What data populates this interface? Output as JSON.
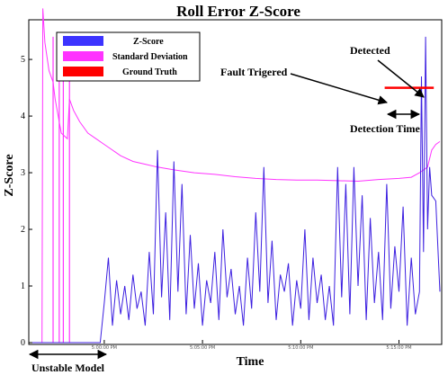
{
  "chart_data": {
    "type": "line",
    "title": "Roll Error Z-Score",
    "xlabel": "Time",
    "ylabel": "Z-Score",
    "ylim": [
      0,
      5.7
    ],
    "y_ticks": [
      "0",
      "1",
      "2",
      "3",
      "4",
      "5"
    ],
    "x_tick_labels": [
      "5:00:00 PM",
      "5:05:00 PM",
      "5:10:00 PM",
      "5:15:00 PM"
    ],
    "grid": false,
    "legend_position": "top-left",
    "series": [
      {
        "name": "Z-Score",
        "color": "#3c1fe0",
        "note_shape": "dense noisy spikes",
        "values": [
          [
            0.0,
            0.0
          ],
          [
            0.17,
            0.0
          ],
          [
            0.18,
            0.7
          ],
          [
            0.19,
            1.5
          ],
          [
            0.2,
            0.3
          ],
          [
            0.21,
            1.1
          ],
          [
            0.22,
            0.5
          ],
          [
            0.23,
            1.0
          ],
          [
            0.24,
            0.4
          ],
          [
            0.25,
            1.2
          ],
          [
            0.26,
            0.6
          ],
          [
            0.27,
            0.9
          ],
          [
            0.28,
            0.3
          ],
          [
            0.29,
            1.6
          ],
          [
            0.3,
            0.5
          ],
          [
            0.31,
            3.4
          ],
          [
            0.32,
            0.8
          ],
          [
            0.33,
            2.3
          ],
          [
            0.34,
            0.4
          ],
          [
            0.35,
            3.2
          ],
          [
            0.36,
            0.9
          ],
          [
            0.37,
            2.8
          ],
          [
            0.38,
            0.5
          ],
          [
            0.39,
            1.9
          ],
          [
            0.4,
            0.6
          ],
          [
            0.41,
            1.4
          ],
          [
            0.42,
            0.3
          ],
          [
            0.43,
            1.1
          ],
          [
            0.44,
            0.7
          ],
          [
            0.45,
            1.6
          ],
          [
            0.46,
            0.4
          ],
          [
            0.47,
            2.0
          ],
          [
            0.48,
            0.8
          ],
          [
            0.49,
            1.3
          ],
          [
            0.5,
            0.5
          ],
          [
            0.51,
            1.0
          ],
          [
            0.52,
            0.3
          ],
          [
            0.53,
            1.5
          ],
          [
            0.54,
            0.6
          ],
          [
            0.55,
            2.3
          ],
          [
            0.56,
            0.9
          ],
          [
            0.57,
            3.1
          ],
          [
            0.58,
            0.7
          ],
          [
            0.59,
            1.8
          ],
          [
            0.6,
            0.4
          ],
          [
            0.61,
            1.2
          ],
          [
            0.62,
            0.9
          ],
          [
            0.63,
            1.4
          ],
          [
            0.64,
            0.3
          ],
          [
            0.65,
            1.1
          ],
          [
            0.66,
            0.6
          ],
          [
            0.67,
            2.0
          ],
          [
            0.68,
            0.4
          ],
          [
            0.69,
            1.5
          ],
          [
            0.7,
            0.7
          ],
          [
            0.71,
            1.2
          ],
          [
            0.72,
            0.4
          ],
          [
            0.73,
            1.0
          ],
          [
            0.74,
            0.3
          ],
          [
            0.75,
            3.1
          ],
          [
            0.76,
            0.8
          ],
          [
            0.77,
            2.8
          ],
          [
            0.78,
            0.5
          ],
          [
            0.79,
            3.1
          ],
          [
            0.8,
            1.0
          ],
          [
            0.81,
            2.6
          ],
          [
            0.82,
            0.4
          ],
          [
            0.83,
            2.2
          ],
          [
            0.84,
            0.7
          ],
          [
            0.85,
            1.6
          ],
          [
            0.86,
            0.4
          ],
          [
            0.87,
            2.8
          ],
          [
            0.88,
            0.6
          ],
          [
            0.89,
            1.7
          ],
          [
            0.9,
            0.9
          ],
          [
            0.91,
            2.4
          ],
          [
            0.92,
            0.3
          ],
          [
            0.93,
            1.5
          ],
          [
            0.94,
            0.5
          ],
          [
            0.95,
            0.9
          ],
          [
            0.955,
            4.7
          ],
          [
            0.96,
            1.6
          ],
          [
            0.965,
            5.4
          ],
          [
            0.97,
            2.0
          ],
          [
            0.975,
            3.1
          ],
          [
            0.98,
            2.6
          ],
          [
            0.99,
            2.5
          ],
          [
            1.0,
            0.9
          ]
        ]
      },
      {
        "name": "Standard Deviation",
        "color": "#ff33ff",
        "values": [
          [
            0.0,
            0.0
          ],
          [
            0.028,
            0.0
          ],
          [
            0.03,
            5.9
          ],
          [
            0.035,
            5.3
          ],
          [
            0.045,
            4.8
          ],
          [
            0.055,
            4.6
          ],
          [
            0.06,
            4.3
          ],
          [
            0.075,
            3.7
          ],
          [
            0.09,
            3.6
          ],
          [
            0.095,
            4.3
          ],
          [
            0.105,
            4.1
          ],
          [
            0.12,
            3.9
          ],
          [
            0.14,
            3.7
          ],
          [
            0.16,
            3.6
          ],
          [
            0.18,
            3.5
          ],
          [
            0.2,
            3.4
          ],
          [
            0.22,
            3.3
          ],
          [
            0.25,
            3.2
          ],
          [
            0.28,
            3.15
          ],
          [
            0.31,
            3.1
          ],
          [
            0.35,
            3.05
          ],
          [
            0.4,
            3.0
          ],
          [
            0.45,
            2.97
          ],
          [
            0.5,
            2.93
          ],
          [
            0.55,
            2.9
          ],
          [
            0.6,
            2.88
          ],
          [
            0.65,
            2.87
          ],
          [
            0.7,
            2.87
          ],
          [
            0.75,
            2.86
          ],
          [
            0.8,
            2.85
          ],
          [
            0.85,
            2.88
          ],
          [
            0.9,
            2.9
          ],
          [
            0.93,
            2.92
          ],
          [
            0.95,
            3.0
          ],
          [
            0.97,
            3.1
          ],
          [
            0.98,
            3.4
          ],
          [
            0.99,
            3.5
          ],
          [
            1.0,
            3.55
          ]
        ],
        "spikes_x": [
          0.055,
          0.07,
          0.08,
          0.095
        ]
      },
      {
        "name": "Ground Truth",
        "color": "#ff0000",
        "values": [
          [
            0.865,
            4.5
          ],
          [
            0.985,
            4.5
          ]
        ]
      }
    ],
    "annotations": [
      {
        "text": "Detected",
        "points_to": [
          0.965,
          4.7
        ]
      },
      {
        "text": "Fault Trigered",
        "points_to": [
          0.865,
          4.5
        ]
      },
      {
        "text": "Detection Time",
        "spans": [
          0.865,
          0.965
        ]
      },
      {
        "text": "Unstable Model",
        "spans": [
          0.0,
          0.19
        ]
      }
    ]
  }
}
